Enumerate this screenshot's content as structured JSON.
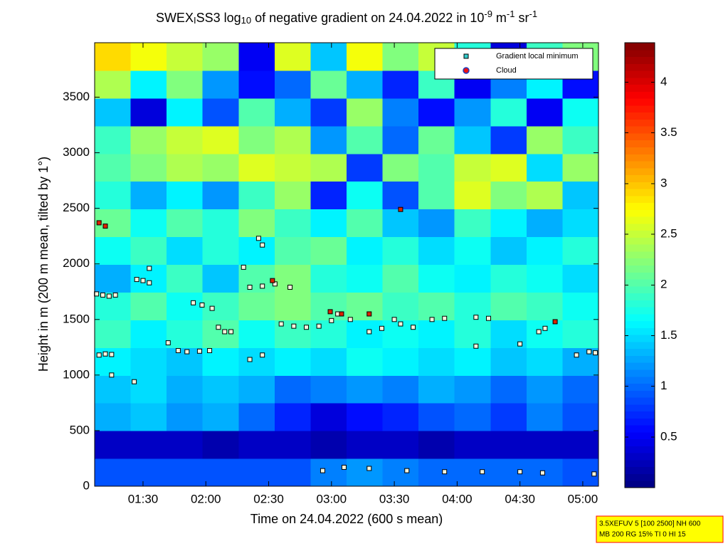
{
  "chart_data": {
    "type": "heatmap",
    "title_parts": [
      "SWEX",
      "I",
      "SS3 log",
      "10",
      " of negative gradient on 24.04.2022 in 10",
      "-9",
      " m",
      "-1",
      " sr",
      "-1"
    ],
    "title_scripts": [
      "base",
      "sub",
      "base",
      "sub",
      "base",
      "sup",
      "base",
      "sup",
      "base",
      "sup"
    ],
    "x_label": "Time on 24.04.2022 (600 s mean)",
    "y_label": "Height in m (200 m mean, tilted by 1°)",
    "xlim": [
      1.115,
      5.125
    ],
    "xticks": [
      {
        "value": 1.5,
        "label": "01:30"
      },
      {
        "value": 2,
        "label": "02:00"
      },
      {
        "value": 2.5,
        "label": "02:30"
      },
      {
        "value": 3,
        "label": "03:00"
      },
      {
        "value": 3.5,
        "label": "03:30"
      },
      {
        "value": 4,
        "label": "04:00"
      },
      {
        "value": 4.5,
        "label": "04:30"
      },
      {
        "value": 5,
        "label": "05:00"
      }
    ],
    "ylim": [
      0,
      3990
    ],
    "yticks": [
      0,
      500,
      1000,
      1500,
      2000,
      2500,
      3000,
      3500
    ],
    "clim": [
      0,
      4.39
    ],
    "cticks": [
      0.5,
      1,
      1.5,
      2,
      2.5,
      3,
      3.5,
      4
    ],
    "colormap": "jet",
    "z": [
      [
        0.9,
        0.9,
        0.9,
        0.9,
        0.9,
        0.9,
        1.1,
        1.2,
        1.1,
        1.0,
        1.0,
        1.0,
        1.0,
        0.9
      ],
      [
        0.3,
        0.3,
        0.3,
        0.2,
        0.3,
        0.3,
        0.2,
        0.3,
        0.3,
        0.2,
        0.3,
        0.3,
        0.3,
        0.3
      ],
      [
        1.3,
        1.4,
        1.2,
        1.3,
        1.0,
        0.7,
        0.4,
        0.6,
        0.7,
        0.9,
        1.0,
        0.8,
        1.1,
        0.9
      ],
      [
        1.4,
        1.5,
        1.3,
        1.4,
        1.3,
        1.0,
        1.1,
        1.2,
        1.1,
        1.3,
        1.2,
        1.0,
        1.2,
        1.0
      ],
      [
        1.6,
        1.5,
        1.4,
        1.6,
        1.5,
        1.6,
        1.5,
        1.7,
        1.6,
        1.5,
        1.6,
        1.4,
        1.5,
        1.3
      ],
      [
        1.9,
        1.6,
        1.8,
        2.0,
        1.7,
        1.9,
        1.8,
        1.6,
        1.7,
        1.6,
        1.8,
        1.5,
        1.7,
        1.8
      ],
      [
        1.8,
        2.0,
        1.7,
        1.9,
        2.1,
        2.2,
        2.0,
        2.1,
        1.9,
        2.0,
        1.8,
        2.0,
        1.9,
        1.7
      ],
      [
        1.3,
        1.6,
        1.9,
        1.4,
        2.0,
        2.2,
        1.8,
        1.7,
        2.0,
        1.7,
        1.6,
        1.8,
        1.7,
        1.5
      ],
      [
        1.7,
        1.9,
        1.5,
        1.8,
        1.6,
        2.0,
        2.1,
        1.6,
        1.8,
        1.5,
        1.7,
        1.4,
        1.6,
        1.8
      ],
      [
        2.1,
        1.7,
        2.0,
        1.8,
        2.2,
        1.9,
        1.6,
        2.0,
        1.4,
        1.2,
        1.9,
        1.6,
        1.3,
        1.5
      ],
      [
        1.8,
        1.3,
        1.6,
        1.2,
        1.9,
        2.3,
        0.7,
        1.7,
        0.9,
        2.0,
        2.6,
        2.2,
        2.4,
        1.4
      ],
      [
        2.0,
        2.2,
        2.4,
        2.3,
        2.6,
        2.5,
        2.4,
        0.8,
        2.2,
        2.0,
        2.5,
        2.6,
        1.5,
        2.3
      ],
      [
        1.9,
        2.3,
        2.5,
        2.6,
        2.2,
        2.4,
        1.2,
        2.0,
        1.0,
        2.1,
        1.4,
        0.8,
        2.3,
        1.9
      ],
      [
        1.4,
        0.4,
        1.6,
        0.9,
        2.0,
        1.3,
        0.8,
        2.3,
        1.1,
        0.6,
        1.2,
        1.8,
        0.5,
        1.7
      ],
      [
        2.4,
        1.6,
        2.2,
        1.2,
        0.6,
        1.0,
        2.1,
        1.3,
        0.7,
        1.9,
        0.5,
        1.1,
        1.6,
        0.6
      ],
      [
        2.9,
        2.7,
        2.5,
        2.3,
        0.5,
        2.6,
        1.4,
        2.7,
        2.2,
        2.5,
        1.8,
        0.4,
        1.9,
        2.2
      ]
    ],
    "series": [
      {
        "name": "Gradient local minimum",
        "color": "#f4f4dc",
        "legend_color": "#33cccc",
        "marker": "square",
        "x": [
          1.13,
          1.18,
          1.23,
          1.28,
          1.15,
          1.2,
          1.25,
          1.45,
          1.5,
          1.55,
          1.7,
          1.78,
          1.85,
          1.95,
          2.03,
          1.9,
          1.97,
          2.05,
          2.1,
          2.15,
          2.2,
          2.35,
          2.45,
          2.55,
          2.35,
          2.45,
          2.6,
          2.7,
          2.8,
          2.9,
          3.0,
          3.05,
          3.15,
          3.3,
          3.4,
          3.55,
          3.65,
          3.8,
          3.9,
          4.15,
          4.25,
          4.15,
          4.5,
          4.65,
          4.7,
          4.95,
          5.05,
          5.1,
          2.93,
          3.1,
          3.3,
          3.6,
          3.9,
          4.2,
          4.5,
          4.68,
          5.09,
          2.45,
          2.42,
          2.3,
          1.55,
          1.25,
          1.43,
          2.67,
          3.5
        ],
        "values": [
          1730,
          1720,
          1710,
          1720,
          1180,
          1190,
          1185,
          1860,
          1850,
          1830,
          1290,
          1220,
          1210,
          1215,
          1220,
          1650,
          1630,
          1600,
          1430,
          1390,
          1390,
          1790,
          1800,
          1820,
          1140,
          1180,
          1460,
          1440,
          1430,
          1440,
          1490,
          1550,
          1500,
          1390,
          1420,
          1460,
          1430,
          1500,
          1510,
          1520,
          1510,
          1260,
          1280,
          1390,
          1420,
          1180,
          1210,
          1200,
          140,
          170,
          160,
          140,
          130,
          130,
          130,
          120,
          110,
          2170,
          2230,
          1970,
          1960,
          1000,
          940,
          1790,
          1500
        ]
      },
      {
        "name": "Cloud",
        "color": "#dd2200",
        "legend_color": "#ee1111",
        "marker": "circle",
        "x": [
          1.15,
          1.2,
          3.08,
          3.3,
          3.55,
          2.53,
          4.78,
          2.99
        ],
        "values": [
          2370,
          2340,
          1550,
          1550,
          2490,
          1850,
          1480,
          1570
        ]
      }
    ],
    "legend": "northeast",
    "info_box": [
      "3.5XEFUV 5 [100 2500] NH 600",
      "MB 200 RG 15% TI 0 HI 15"
    ]
  }
}
